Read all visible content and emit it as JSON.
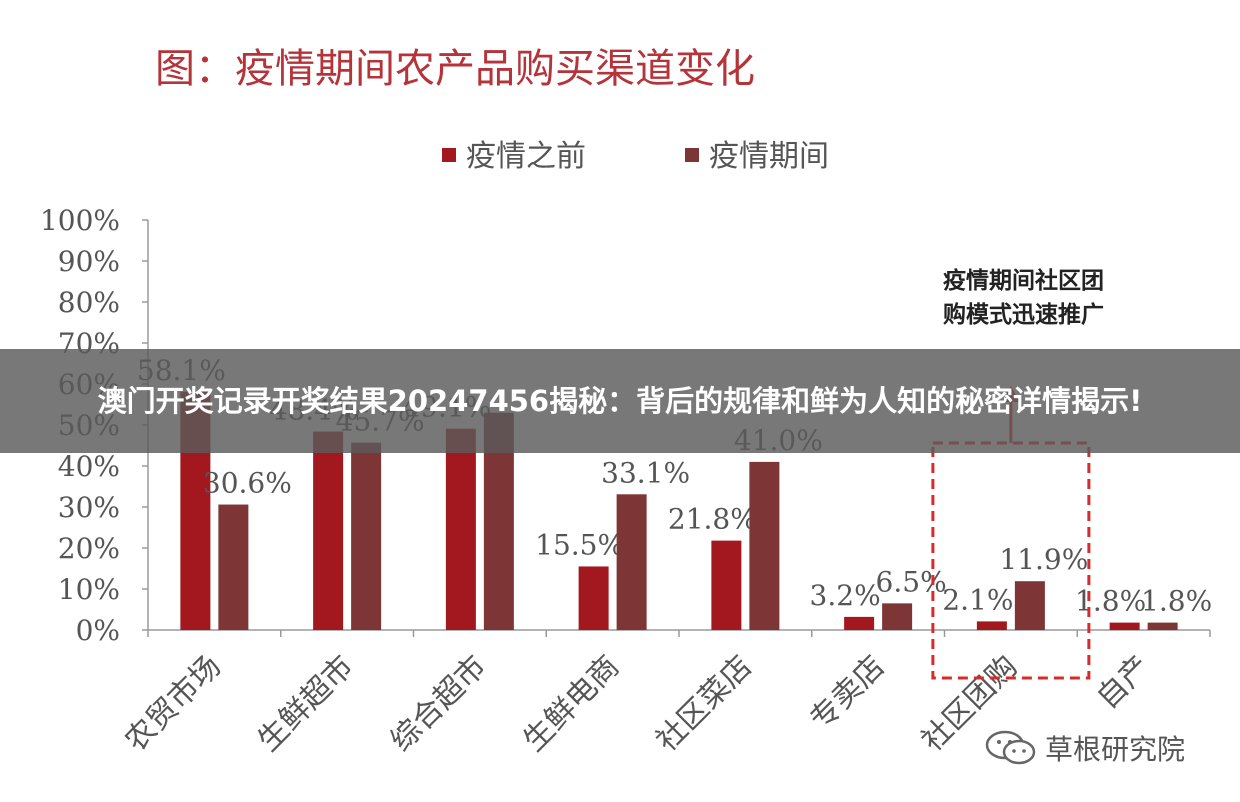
{
  "overlay": {
    "text": "澳门开奖记录开奖结果20247456揭秘：背后的规律和鲜为人知的秘密详情揭示!"
  },
  "watermark": {
    "text": "草根研究院",
    "icon": "wechat-icon"
  },
  "chart_data": {
    "type": "bar",
    "title": "图：疫情期间农产品购买渠道变化",
    "categories": [
      "农贸市场",
      "生鲜超市",
      "综合超市",
      "生鲜电商",
      "社区菜店",
      "专卖店",
      "社区团购",
      "自产"
    ],
    "series": [
      {
        "name": "疫情之前",
        "color": "#a3181e",
        "values": [
          58.1,
          48.4,
          49.1,
          15.5,
          21.8,
          3.2,
          2.1,
          1.8
        ],
        "labels": [
          "58.1%",
          "48.4%",
          "49.1%",
          "15.5%",
          "21.8%",
          "3.2%",
          "2.1%",
          "1.8%"
        ]
      },
      {
        "name": "疫情期间",
        "color": "#7e3535",
        "values": [
          30.6,
          45.7,
          53.0,
          33.1,
          41.0,
          6.5,
          11.9,
          1.8
        ],
        "labels": [
          "30.6%",
          "45.7%",
          "",
          "33.1%",
          "41.0%",
          "6.5%",
          "11.9%",
          "1.8%"
        ]
      }
    ],
    "yticks": [
      "0%",
      "10%",
      "20%",
      "30%",
      "40%",
      "50%",
      "60%",
      "70%",
      "80%",
      "90%",
      "100%"
    ],
    "ylim": [
      0,
      100
    ],
    "grid": false,
    "legend": "top",
    "annotation": {
      "lines": [
        "疫情期间社区团",
        "购模式迅速推广"
      ],
      "target_category": "社区团购",
      "color": "#d92a2a"
    }
  }
}
